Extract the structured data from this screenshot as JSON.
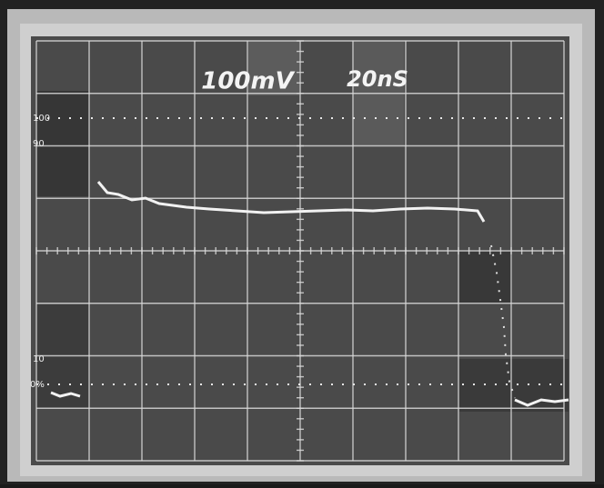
{
  "scope": {
    "readout": {
      "volts_per_div": "100mV",
      "time_per_div": "20nS"
    },
    "graticule_marks": {
      "top": "100",
      "rise_high": "90",
      "rise_low": "10",
      "bottom": "0%"
    }
  }
}
